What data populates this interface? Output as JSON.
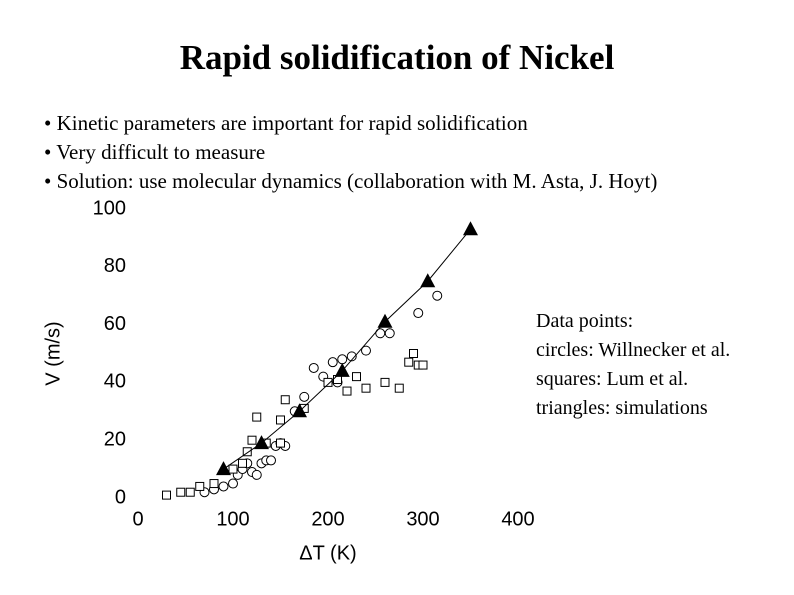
{
  "title": "Rapid solidification of Nickel",
  "bullets": [
    "• Kinetic parameters are important for rapid solidification",
    "• Very difficult to measure",
    "• Solution: use molecular dynamics (collaboration with M. Asta, J. Hoyt)"
  ],
  "notes": [
    "Data points:",
    "circles: Willnecker et al.",
    "squares: Lum et al.",
    "triangles: simulations"
  ],
  "chart_data": {
    "type": "scatter",
    "xlabel": "ΔT (K)",
    "ylabel": "V (m/s)",
    "xlim": [
      0,
      400
    ],
    "ylim": [
      0,
      100
    ],
    "xticks": [
      0,
      100,
      200,
      300,
      400
    ],
    "yticks": [
      0,
      20,
      40,
      60,
      80,
      100
    ],
    "series": [
      {
        "marker": "circle",
        "color": "#000000",
        "x": [
          70,
          80,
          90,
          100,
          105,
          110,
          115,
          120,
          125,
          130,
          135,
          140,
          145,
          150,
          155,
          165,
          175,
          185,
          195,
          205,
          210,
          215,
          225,
          240,
          255,
          265,
          295,
          315
        ],
        "values": [
          2,
          3,
          4,
          5,
          8,
          10,
          12,
          9,
          8,
          12,
          13,
          13,
          18,
          19,
          18,
          30,
          35,
          45,
          42,
          47,
          40,
          48,
          49,
          51,
          57,
          57,
          64,
          70
        ]
      },
      {
        "marker": "square",
        "color": "#000000",
        "x": [
          30,
          45,
          55,
          65,
          80,
          100,
          110,
          115,
          120,
          125,
          135,
          150,
          150,
          155,
          175,
          200,
          210,
          220,
          230,
          240,
          260,
          275,
          285,
          290,
          295,
          300
        ],
        "values": [
          1,
          2,
          2,
          4,
          5,
          10,
          12,
          16,
          20,
          28,
          19,
          19,
          27,
          34,
          31,
          40,
          41,
          37,
          42,
          38,
          40,
          38,
          47,
          50,
          46,
          46
        ]
      },
      {
        "marker": "triangle",
        "color": "#000000",
        "line": true,
        "x": [
          90,
          130,
          170,
          215,
          260,
          305,
          350
        ],
        "values": [
          10,
          19,
          30,
          44,
          61,
          75,
          93
        ]
      }
    ]
  }
}
